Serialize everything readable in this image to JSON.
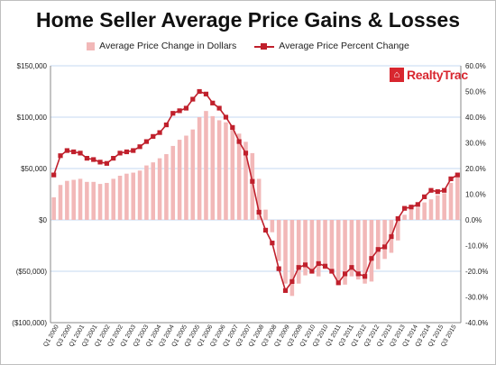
{
  "chart_data": {
    "type": "bar",
    "title": "Home Seller Average Price Gains & Losses",
    "logo_text": "RealtyTrac",
    "categories": [
      "Q1 2000",
      "Q2 2000",
      "Q3 2000",
      "Q4 2000",
      "Q1 2001",
      "Q2 2001",
      "Q3 2001",
      "Q4 2001",
      "Q1 2002",
      "Q2 2002",
      "Q3 2002",
      "Q4 2002",
      "Q1 2003",
      "Q2 2003",
      "Q3 2003",
      "Q4 2003",
      "Q1 2004",
      "Q2 2004",
      "Q3 2004",
      "Q4 2004",
      "Q1 2005",
      "Q2 2005",
      "Q3 2005",
      "Q4 2005",
      "Q1 2006",
      "Q2 2006",
      "Q3 2006",
      "Q4 2006",
      "Q1 2007",
      "Q2 2007",
      "Q3 2007",
      "Q4 2007",
      "Q1 2008",
      "Q2 2008",
      "Q3 2008",
      "Q4 2008",
      "Q1 2009",
      "Q2 2009",
      "Q3 2009",
      "Q4 2009",
      "Q1 2010",
      "Q2 2010",
      "Q3 2010",
      "Q4 2010",
      "Q1 2011",
      "Q2 2011",
      "Q3 2011",
      "Q4 2011",
      "Q1 2012",
      "Q2 2012",
      "Q3 2012",
      "Q4 2012",
      "Q1 2013",
      "Q2 2013",
      "Q3 2013",
      "Q4 2013",
      "Q1 2014",
      "Q2 2014",
      "Q3 2014",
      "Q4 2014",
      "Q1 2015",
      "Q2 2015"
    ],
    "x_tick_labels": [
      "Q1 2000",
      "Q3 2000",
      "Q1 2001",
      "Q3 2001",
      "Q1 2002",
      "Q3 2002",
      "Q1 2003",
      "Q3 2003",
      "Q1 2004",
      "Q3 2004",
      "Q1 2005",
      "Q3 2005",
      "Q1 2006",
      "Q3 2006",
      "Q1 2007",
      "Q3 2007",
      "Q1 2008",
      "Q3 2008",
      "Q1 2009",
      "Q3 2009",
      "Q1 2010",
      "Q3 2010",
      "Q1 2011",
      "Q3 2011",
      "Q1 2012",
      "Q3 2012",
      "Q1 2013",
      "Q3 2013",
      "Q1 2014",
      "Q3 2014",
      "Q1 2015",
      "Q3 2015"
    ],
    "series": [
      {
        "name": "Average Price Change in Dollars",
        "type": "bar",
        "axis": "left",
        "color": "#f2b8b8",
        "values": [
          22000,
          34000,
          38000,
          39000,
          40000,
          37000,
          37000,
          35000,
          36000,
          40000,
          43000,
          45000,
          46000,
          48000,
          53000,
          56000,
          60000,
          64000,
          72000,
          78000,
          82000,
          88000,
          100000,
          106000,
          101000,
          97000,
          95000,
          88000,
          84000,
          76000,
          65000,
          40000,
          10000,
          -12000,
          -40000,
          -62000,
          -74000,
          -62000,
          -54000,
          -50000,
          -55000,
          -48000,
          -52000,
          -60000,
          -63000,
          -55000,
          -58000,
          -62000,
          -60000,
          -48000,
          -38000,
          -32000,
          -20000,
          5000,
          10000,
          12000,
          17000,
          20000,
          24000,
          26000,
          36000,
          42000
        ]
      },
      {
        "name": "Average Price Percent Change",
        "type": "line",
        "axis": "right",
        "color": "#c0202c",
        "values": [
          17.5,
          25,
          27,
          26.5,
          26,
          24,
          23.5,
          22.5,
          22,
          24,
          26,
          26.5,
          27,
          28.5,
          30.5,
          32.5,
          34,
          37,
          41.5,
          42.5,
          43.5,
          47,
          50,
          49,
          45.5,
          43.5,
          40,
          36,
          30.5,
          26,
          15,
          3,
          -4,
          -9,
          -19,
          -27.5,
          -24,
          -18.5,
          -17.5,
          -20,
          -17,
          -18,
          -20,
          -24.5,
          -21,
          -18.5,
          -21,
          -22,
          -15,
          -11.5,
          -10.5,
          -6.5,
          0.5,
          4.5,
          5,
          6,
          9,
          11.5,
          11,
          11.5,
          16,
          17.5
        ]
      }
    ],
    "y_left": {
      "range": [
        -100000,
        150000
      ],
      "ticks": [
        -100000,
        -50000,
        0,
        50000,
        100000,
        150000
      ],
      "tick_labels": [
        "($100,000)",
        "($50,000)",
        "$0",
        "$50,000",
        "$100,000",
        "$150,000"
      ]
    },
    "y_right": {
      "range": [
        -40,
        60
      ],
      "ticks": [
        -40,
        -30,
        -20,
        -10,
        0,
        10,
        20,
        30,
        40,
        50,
        60
      ],
      "tick_labels": [
        "-40.0%",
        "-30.0%",
        "-20.0%",
        "-10.0%",
        "0.0%",
        "10.0%",
        "20.0%",
        "30.0%",
        "40.0%",
        "50.0%",
        "60.0%"
      ]
    },
    "grid": true,
    "legend": "top"
  }
}
